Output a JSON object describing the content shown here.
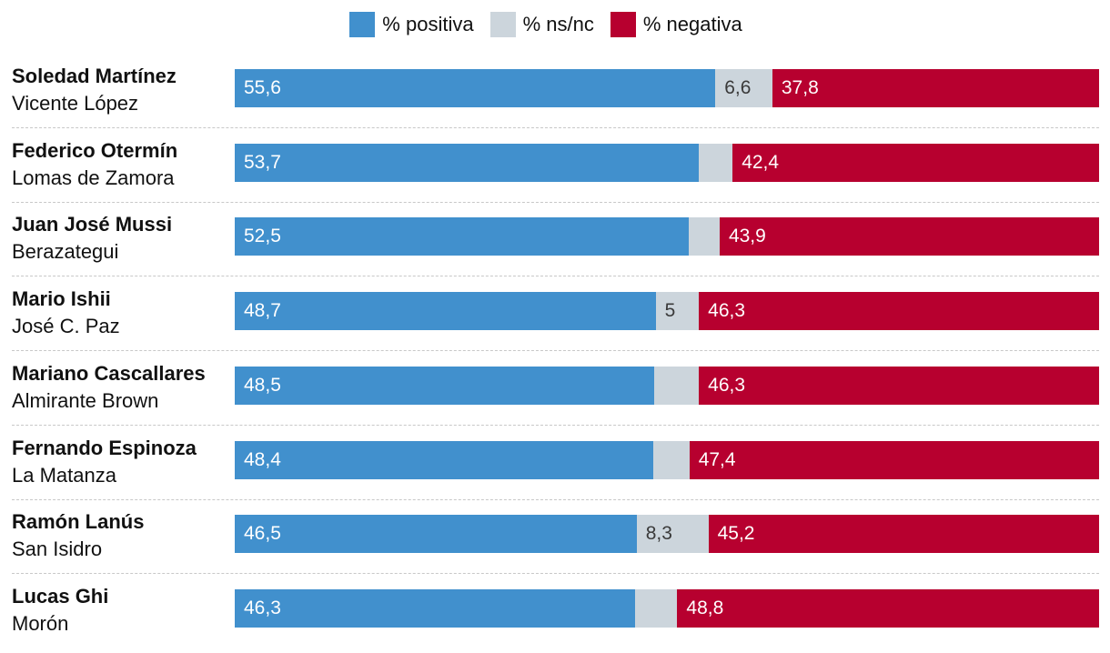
{
  "legend": {
    "positive": {
      "label": "% positiva",
      "color": "#4190cd"
    },
    "nsnc": {
      "label": "% ns/nc",
      "color": "#ccd5dc"
    },
    "negative": {
      "label": "% negativa",
      "color": "#b7002f"
    }
  },
  "chart_data": {
    "type": "bar",
    "orientation": "horizontal-stacked",
    "categories": [
      {
        "name": "Soledad Martínez",
        "municipality": "Vicente López"
      },
      {
        "name": "Federico Otermín",
        "municipality": "Lomas de Zamora"
      },
      {
        "name": "Juan José Mussi",
        "municipality": "Berazategui"
      },
      {
        "name": "Mario Ishii",
        "municipality": "José C. Paz"
      },
      {
        "name": "Mariano Cascallares",
        "municipality": "Almirante Brown"
      },
      {
        "name": "Fernando Espinoza",
        "municipality": "La Matanza"
      },
      {
        "name": "Ramón Lanús",
        "municipality": "San Isidro"
      },
      {
        "name": "Lucas Ghi",
        "municipality": "Morón"
      }
    ],
    "series": [
      {
        "key": "positive",
        "name": "% positiva",
        "values": [
          55.6,
          53.7,
          52.5,
          48.7,
          48.5,
          48.4,
          46.5,
          46.3
        ],
        "labels": [
          "55,6",
          "53,7",
          "52,5",
          "48,7",
          "48,5",
          "48,4",
          "46,5",
          "46,3"
        ],
        "show_label": [
          true,
          true,
          true,
          true,
          true,
          true,
          true,
          true
        ]
      },
      {
        "key": "nsnc",
        "name": "% ns/nc",
        "values": [
          6.6,
          3.9,
          3.6,
          5,
          5.2,
          4.2,
          8.3,
          4.9
        ],
        "labels": [
          "6,6",
          "3,9",
          "3,6",
          "5",
          "5,2",
          "4,2",
          "8,3",
          "4,9"
        ],
        "show_label": [
          true,
          false,
          false,
          true,
          false,
          false,
          true,
          false
        ]
      },
      {
        "key": "negative",
        "name": "% negativa",
        "values": [
          37.8,
          42.4,
          43.9,
          46.3,
          46.3,
          47.4,
          45.2,
          48.8
        ],
        "labels": [
          "37,8",
          "42,4",
          "43,9",
          "46,3",
          "46,3",
          "47,4",
          "45,2",
          "48,8"
        ],
        "show_label": [
          true,
          true,
          true,
          true,
          true,
          true,
          true,
          true
        ]
      }
    ],
    "xlim": [
      0,
      100
    ]
  }
}
